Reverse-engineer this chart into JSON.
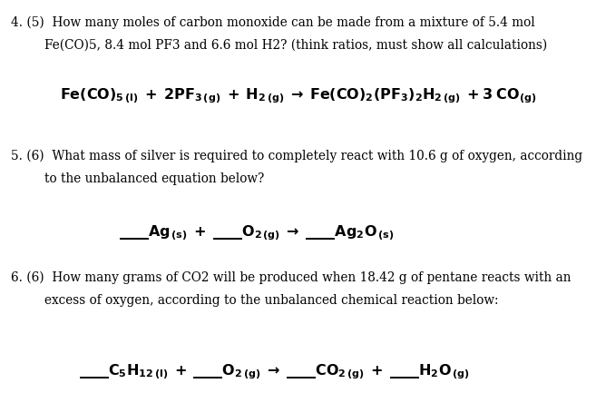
{
  "background_color": "#ffffff",
  "figsize": [
    6.57,
    4.44
  ],
  "dpi": 100,
  "q4_line1": "4. (5)  How many moles of carbon monoxide can be made from a mixture of 5.4 mol",
  "q4_line2": "Fe(CO)5, 8.4 mol PF3 and 6.6 mol H2? (think ratios, must show all calculations)",
  "q5_line1": "5. (6)  What mass of silver is required to completely react with 10.6 g of oxygen, according",
  "q5_line2": "to the unbalanced equation below?",
  "q6_line1": "6. (6)  How many grams of CO2 will be produced when 18.42 g of pentane reacts with an",
  "q6_line2": "excess of oxygen, according to the unbalanced chemical reaction below:",
  "body_fontsize": 9.8,
  "eq_fontsize": 11.5,
  "indent_q": 0.018,
  "indent_body": 0.075
}
